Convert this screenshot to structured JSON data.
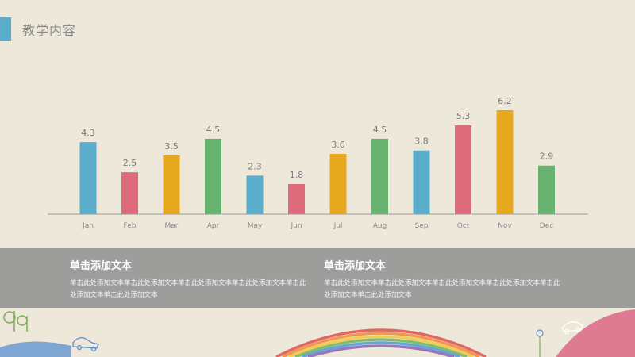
{
  "header": {
    "title": "教学内容"
  },
  "chart_data": {
    "type": "bar",
    "categories": [
      "Jan",
      "Feb",
      "Mar",
      "Apr",
      "May",
      "Jun",
      "Jul",
      "Aug",
      "Sep",
      "Oct",
      "Nov",
      "Dec"
    ],
    "values": [
      4.3,
      2.5,
      3.5,
      4.5,
      2.3,
      1.8,
      3.6,
      4.5,
      3.8,
      5.3,
      6.2,
      2.9
    ],
    "colors": [
      "#5aaecb",
      "#de6b7c",
      "#e5a81e",
      "#67b26f",
      "#5aaecb",
      "#de6b7c",
      "#e5a81e",
      "#67b26f",
      "#5aaecb",
      "#de6b7c",
      "#e5a81e",
      "#67b26f"
    ],
    "ylim": [
      0,
      6.2
    ],
    "grid": false,
    "data_labels": true
  },
  "blocks": [
    {
      "title": "单击添加文本",
      "body": "单击此处添加文本单击此处添加文本单击此处添加文本单击此处添加文本单击此处添加文本单击此处添加文本"
    },
    {
      "title": "单击添加文本",
      "body": "单击此处添加文本单击此处添加文本单击此处添加文本单击此处添加文本单击此处添加文本单击此处添加文本"
    }
  ]
}
